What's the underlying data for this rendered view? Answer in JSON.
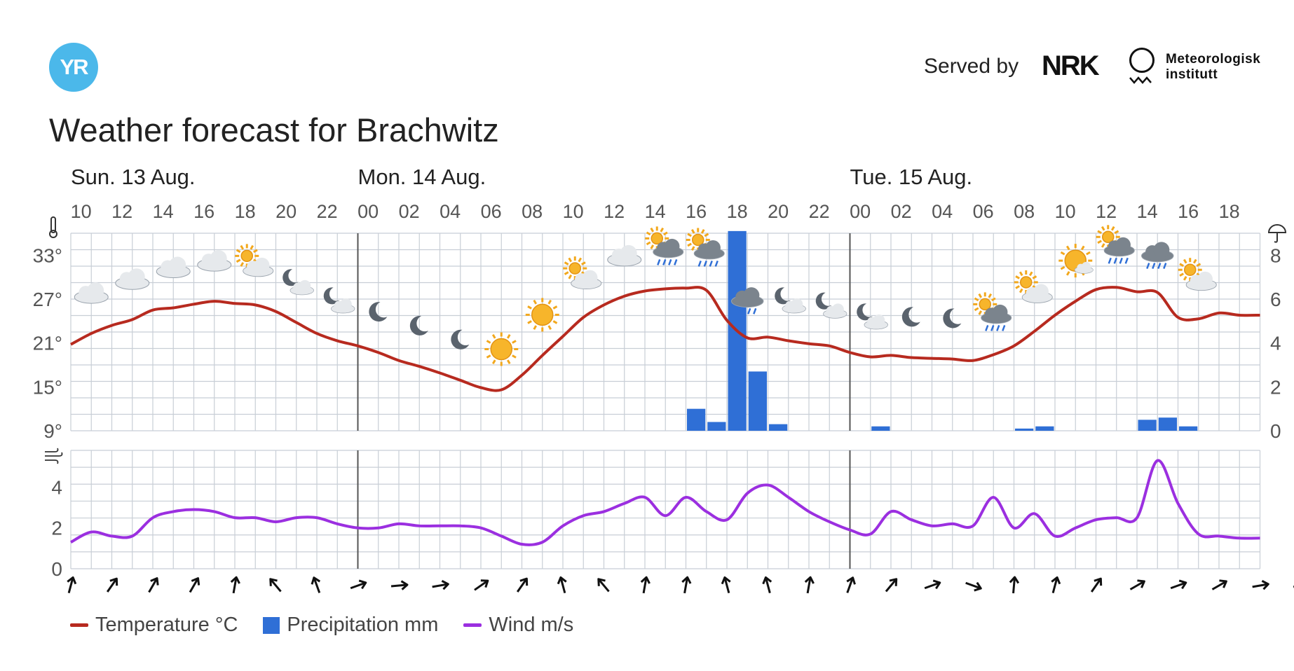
{
  "header": {
    "logo_text": "YR",
    "served_by": "Served by",
    "nrk_logo_text": "NRK",
    "met_line1": "Meteorologisk",
    "met_line2": "institutt"
  },
  "title": "Weather forecast for Brachwitz",
  "chart_data": {
    "type": "line",
    "x_hours": [
      "Sun 10:00",
      "11",
      "12",
      "13",
      "14",
      "15",
      "16",
      "17",
      "18",
      "19",
      "20",
      "21",
      "22",
      "23",
      "Mon 00:00",
      "01",
      "02",
      "03",
      "04",
      "05",
      "06",
      "07",
      "08",
      "09",
      "10",
      "11",
      "12",
      "13",
      "14",
      "15",
      "16",
      "17",
      "18",
      "19",
      "20",
      "21",
      "22",
      "23",
      "Tue 00:00",
      "01",
      "02",
      "03",
      "04",
      "05",
      "06",
      "07",
      "08",
      "09",
      "10",
      "11",
      "12",
      "13",
      "14",
      "15",
      "16",
      "17",
      "18",
      "19"
    ],
    "days": [
      "Sun. 13 Aug.",
      "Mon. 14 Aug.",
      "Tue. 15 Aug."
    ],
    "hour_ticks": [
      "10",
      "12",
      "14",
      "16",
      "18",
      "20",
      "22",
      "00",
      "02",
      "04",
      "06",
      "08",
      "10",
      "12",
      "14",
      "16",
      "18",
      "20",
      "22",
      "00",
      "02",
      "04",
      "06",
      "08",
      "10",
      "12",
      "14",
      "16",
      "18"
    ],
    "temperature_yticks": [
      "33°",
      "27°",
      "21°",
      "15°",
      "9°"
    ],
    "precip_yticks": [
      "8",
      "6",
      "4",
      "2",
      "0"
    ],
    "wind_yticks": [
      "4",
      "2",
      "0"
    ],
    "temperature_ylim": [
      9,
      36
    ],
    "precip_ylim": [
      0,
      9
    ],
    "wind_ylim": [
      0,
      5.8
    ],
    "series": [
      {
        "name": "Temperature °C",
        "color": "#b72a1f",
        "values": [
          20.8,
          22.3,
          23.4,
          24.2,
          25.5,
          25.8,
          26.3,
          26.7,
          26.4,
          26.2,
          25.3,
          23.8,
          22.3,
          21.3,
          20.6,
          19.7,
          18.6,
          17.8,
          16.9,
          15.9,
          14.9,
          14.6,
          16.6,
          19.3,
          21.9,
          24.5,
          26.2,
          27.4,
          28.1,
          28.4,
          28.5,
          28.2,
          24.1,
          21.7,
          21.8,
          21.3,
          20.9,
          20.6,
          19.7,
          19.1,
          19.3,
          19.0,
          18.9,
          18.8,
          18.6,
          19.4,
          20.6,
          22.6,
          24.8,
          26.7,
          28.3,
          28.6,
          28.0,
          27.9,
          24.5,
          24.3,
          25.1,
          24.8
        ]
      },
      {
        "name": "Precipitation mm",
        "color": "#2f6fd6",
        "values": [
          0,
          0,
          0,
          0,
          0,
          0,
          0,
          0,
          0,
          0,
          0,
          0,
          0,
          0,
          0,
          0,
          0,
          0,
          0,
          0,
          0,
          0,
          0,
          0,
          0,
          0,
          0,
          0,
          0,
          0,
          1.0,
          0.4,
          9.1,
          2.7,
          0.3,
          0,
          0,
          0,
          0,
          0.2,
          0,
          0,
          0,
          0,
          0,
          0,
          0.1,
          0.2,
          0,
          0,
          0,
          0,
          0.5,
          0.6,
          0.2,
          0,
          0,
          0
        ]
      },
      {
        "name": "Wind m/s",
        "color": "#9b2fe0",
        "values": [
          1.3,
          1.8,
          1.6,
          1.6,
          2.5,
          2.8,
          2.9,
          2.8,
          2.5,
          2.5,
          2.3,
          2.5,
          2.5,
          2.2,
          2.0,
          2.0,
          2.2,
          2.1,
          2.1,
          2.1,
          2.0,
          1.6,
          1.2,
          1.3,
          2.1,
          2.6,
          2.8,
          3.2,
          3.5,
          2.6,
          3.5,
          2.8,
          2.4,
          3.7,
          4.1,
          3.5,
          2.8,
          2.3,
          1.9,
          1.7,
          2.8,
          2.4,
          2.1,
          2.2,
          2.1,
          3.5,
          2.0,
          2.7,
          1.6,
          2.0,
          2.4,
          2.5,
          2.5,
          5.3,
          3.2,
          1.7,
          1.6,
          1.5
        ]
      }
    ],
    "grid": true
  },
  "weather_icons": [
    {
      "hour": 1,
      "icon": "cloudy"
    },
    {
      "hour": 3,
      "icon": "cloudy"
    },
    {
      "hour": 5,
      "icon": "cloudy"
    },
    {
      "hour": 7,
      "icon": "cloudy"
    },
    {
      "hour": 9,
      "icon": "partly-cloudy-day"
    },
    {
      "hour": 11,
      "icon": "partly-cloudy-night"
    },
    {
      "hour": 13,
      "icon": "partly-cloudy-night"
    },
    {
      "hour": 15,
      "icon": "clear-night"
    },
    {
      "hour": 17,
      "icon": "clear-night"
    },
    {
      "hour": 19,
      "icon": "clear-night"
    },
    {
      "hour": 21,
      "icon": "clear-day"
    },
    {
      "hour": 23,
      "icon": "clear-day"
    },
    {
      "hour": 25,
      "icon": "partly-cloudy-day"
    },
    {
      "hour": 27,
      "icon": "cloudy"
    },
    {
      "hour": 29,
      "icon": "rain-showers-day"
    },
    {
      "hour": 31,
      "icon": "rain-showers-day"
    },
    {
      "hour": 33,
      "icon": "rain"
    },
    {
      "hour": 35,
      "icon": "partly-cloudy-night"
    },
    {
      "hour": 37,
      "icon": "partly-cloudy-night"
    },
    {
      "hour": 39,
      "icon": "partly-cloudy-night"
    },
    {
      "hour": 41,
      "icon": "clear-night"
    },
    {
      "hour": 43,
      "icon": "clear-night"
    },
    {
      "hour": 45,
      "icon": "rain-showers-day"
    },
    {
      "hour": 47,
      "icon": "partly-cloudy-day"
    },
    {
      "hour": 49,
      "icon": "fair-day"
    },
    {
      "hour": 51,
      "icon": "rain-showers-day"
    },
    {
      "hour": 53,
      "icon": "rain"
    },
    {
      "hour": 55,
      "icon": "partly-cloudy-day"
    }
  ],
  "wind_directions_deg": [
    15,
    35,
    30,
    30,
    10,
    -40,
    -20,
    70,
    85,
    80,
    55,
    35,
    -15,
    -40,
    10,
    10,
    -15,
    -15,
    10,
    20,
    40,
    70,
    110,
    5,
    15,
    35,
    60,
    70,
    60,
    80,
    80,
    45
  ],
  "legend": [
    {
      "label": "Temperature °C",
      "color": "#b72a1f",
      "shape": "line"
    },
    {
      "label": "Precipitation mm",
      "color": "#2f6fd6",
      "shape": "box"
    },
    {
      "label": "Wind m/s",
      "color": "#9b2fe0",
      "shape": "line"
    }
  ],
  "colors": {
    "grid": "#c8ced6",
    "axis_text": "#555555",
    "day_separator": "#555555"
  }
}
